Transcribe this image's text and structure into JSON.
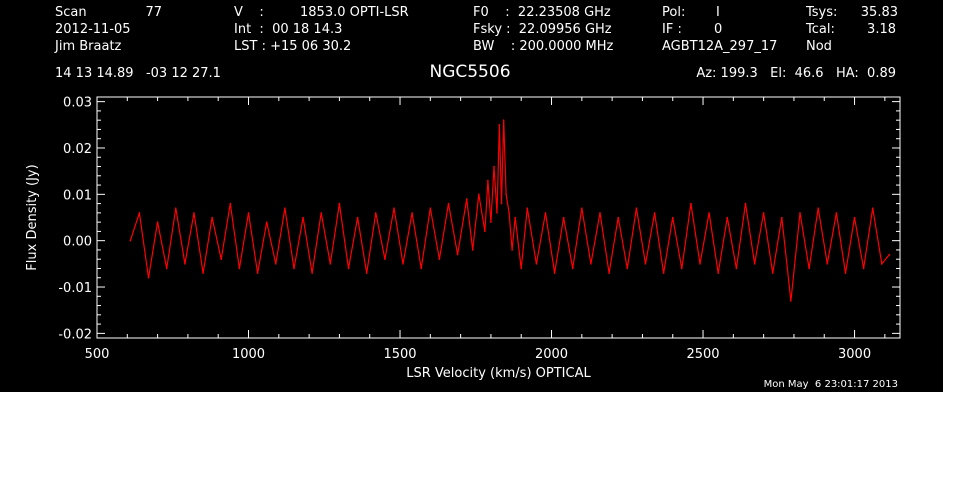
{
  "header": {
    "scan_label": "Scan",
    "scan_value": "77",
    "date": "2012-11-05",
    "observer": "Jim Braatz",
    "coords": "14 13 14.89   -03 12 27.1",
    "v_label": "V    :",
    "v_value": "1853.0 OPTI-LSR",
    "int_line": "Int  :  00 18 14.3",
    "lst_line": "LST : +15 06 30.2",
    "f0_line": "F0    :  22.23508 GHz",
    "fsky_line": "Fsky :  22.09956 GHz",
    "bw_line": "BW    : 200.0000 MHz",
    "pol_label": "Pol:",
    "pol_value": "I",
    "if_label": "IF :",
    "if_value": "0",
    "project": "AGBT12A_297_17",
    "tsys_label": "Tsys:",
    "tsys_value": "35.83",
    "tcal_label": "Tcal:",
    "tcal_value": "3.18",
    "proc": "Nod",
    "az_el_ha": "Az: 199.3   El:  46.6   HA:  0.89"
  },
  "source_name": "NGC5506",
  "timestamp": "Mon May  6 23:01:17 2013",
  "colors": {
    "background": "#000000",
    "axes": "#ffffff",
    "series": "#ff0000"
  },
  "chart_data": {
    "type": "line",
    "title": "NGC5506",
    "xlabel": "LSR Velocity (km/s) OPTICAL",
    "ylabel": "Flux Density (Jy)",
    "xlim": [
      500,
      3150
    ],
    "ylim": [
      -0.021,
      0.031
    ],
    "xticks": [
      500,
      1000,
      1500,
      2000,
      2500,
      3000
    ],
    "xtick_labels": [
      "500",
      "1000",
      "1500",
      "2000",
      "2500",
      "3000"
    ],
    "yticks": [
      -0.02,
      -0.01,
      0.0,
      0.01,
      0.02,
      0.03
    ],
    "ytick_labels": [
      "-0.02",
      "-0.01",
      "0.00",
      "0.01",
      "0.02",
      "0.03"
    ],
    "grid": false,
    "series": [
      {
        "x": [
          610,
          640,
          670,
          700,
          730,
          760,
          790,
          820,
          850,
          880,
          910,
          940,
          970,
          1000,
          1030,
          1060,
          1090,
          1120,
          1150,
          1180,
          1210,
          1240,
          1270,
          1300,
          1330,
          1360,
          1390,
          1420,
          1450,
          1480,
          1510,
          1540,
          1570,
          1600,
          1630,
          1660,
          1690,
          1720,
          1740,
          1760,
          1780,
          1790,
          1800,
          1810,
          1820,
          1828,
          1835,
          1842,
          1850,
          1860,
          1870,
          1880,
          1900,
          1920,
          1950,
          1980,
          2010,
          2040,
          2070,
          2100,
          2130,
          2160,
          2190,
          2220,
          2250,
          2280,
          2310,
          2340,
          2370,
          2400,
          2430,
          2460,
          2490,
          2520,
          2550,
          2580,
          2610,
          2640,
          2670,
          2700,
          2730,
          2760,
          2790,
          2820,
          2850,
          2880,
          2910,
          2940,
          2970,
          3000,
          3030,
          3060,
          3090,
          3115
        ],
        "y": [
          0.0,
          0.006,
          -0.008,
          0.004,
          -0.006,
          0.007,
          -0.005,
          0.006,
          -0.007,
          0.005,
          -0.004,
          0.008,
          -0.006,
          0.006,
          -0.007,
          0.004,
          -0.005,
          0.007,
          -0.006,
          0.005,
          -0.007,
          0.006,
          -0.005,
          0.008,
          -0.006,
          0.005,
          -0.007,
          0.006,
          -0.004,
          0.007,
          -0.005,
          0.006,
          -0.006,
          0.007,
          -0.004,
          0.008,
          -0.003,
          0.009,
          -0.002,
          0.01,
          0.002,
          0.013,
          0.004,
          0.016,
          0.006,
          0.025,
          0.008,
          0.026,
          0.01,
          0.006,
          -0.002,
          0.005,
          -0.006,
          0.007,
          -0.005,
          0.006,
          -0.007,
          0.005,
          -0.006,
          0.007,
          -0.005,
          0.006,
          -0.007,
          0.005,
          -0.006,
          0.007,
          -0.005,
          0.006,
          -0.007,
          0.005,
          -0.006,
          0.008,
          -0.005,
          0.006,
          -0.007,
          0.005,
          -0.006,
          0.008,
          -0.005,
          0.006,
          -0.007,
          0.005,
          -0.013,
          0.006,
          -0.006,
          0.007,
          -0.005,
          0.006,
          -0.007,
          0.005,
          -0.006,
          0.007,
          -0.005,
          -0.003
        ]
      }
    ]
  }
}
